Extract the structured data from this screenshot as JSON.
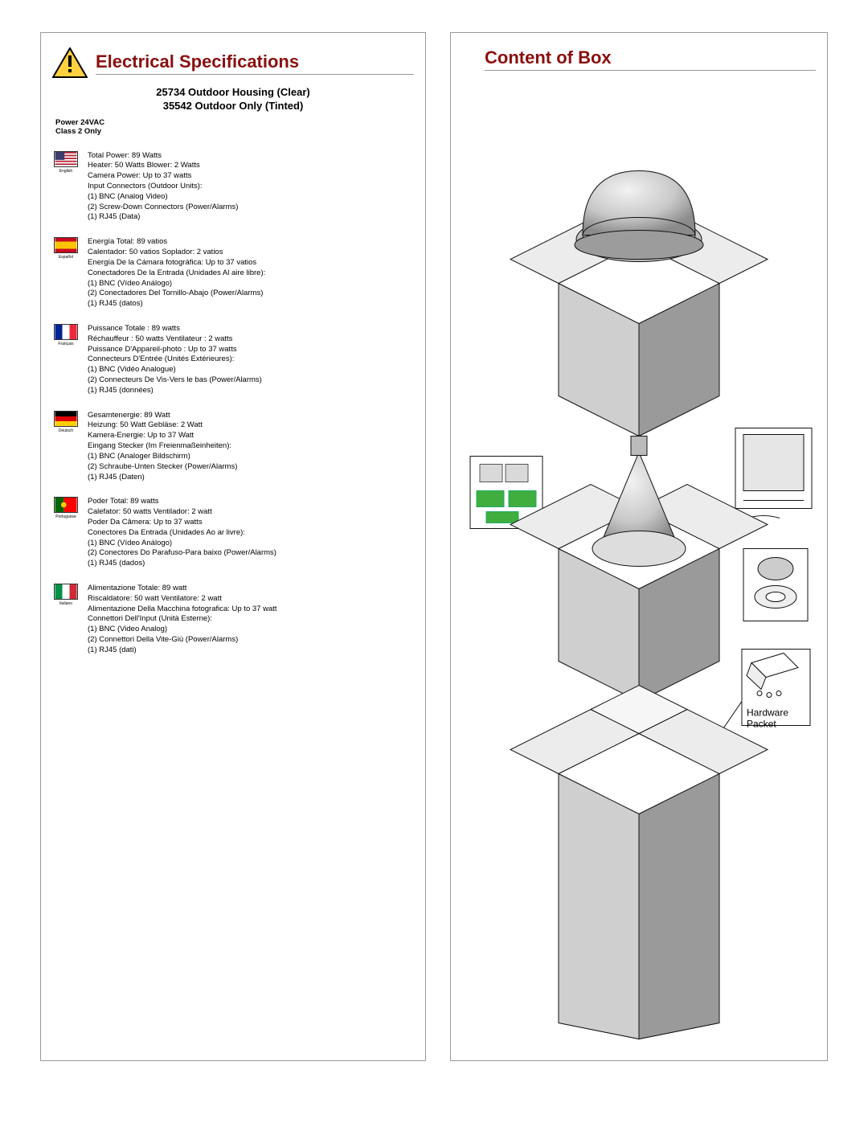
{
  "left": {
    "heading": "Electrical Specifications",
    "sub_line1": "25734 Outdoor Housing (Clear)",
    "sub_line2": "35542 Outdoor Only (Tinted)",
    "power_line1": "Power 24VAC",
    "power_line2": "Class 2 Only",
    "languages": [
      {
        "name": "English",
        "flag": "us",
        "text": "Total Power: 89 Watts\nHeater: 50 Watts    Blower: 2 Watts\nCamera Power:  Up to 37 watts\nInput Connectors (Outdoor Units):\n            (1) BNC (Analog Video)\n            (2) Screw-Down Connectors (Power/Alarms)\n            (1) RJ45 (Data)"
      },
      {
        "name": "Español",
        "flag": "es",
        "text": "Energía Total: 89 vatios\nCalentador: 50 vatios    Soplador: 2 vatios\nEnergía De la Cámara fotográfica:  Up to 37 vatios\nConectadores De la Entrada (Unidades Al aire libre):\n            (1) BNC (Vídeo Análogo)\n            (2) Conectadores Del Tornillo-Abajo (Power/Alarms)\n            (1) RJ45 (datos)"
      },
      {
        "name": "Français",
        "flag": "fr",
        "text": "Puissance Totale : 89 watts\nRéchauffeur : 50 watts    Ventilateur : 2 watts\nPuissance D'Appareil-photo : Up to 37 watts\nConnecteurs D'Entrée (Unités Extérieures):\n            (1) BNC (Vidéo Analogue)\n            (2) Connecteurs De Vis-Vers le bas (Power/Alarms)\n            (1) RJ45 (données)"
      },
      {
        "name": "Deutsch",
        "flag": "de",
        "text": "Gesamtenergie: 89 Watt\nHeizung: 50 Watt    Gebläse: 2 Watt\nKamera-Energie:  Up to 37 Watt\nEingang Stecker (Im Freienmaßeinheiten):\n            (1) BNC (Analoger Bildschirm)\n            (2) Schraube-Unten Stecker (Power/Alarms)\n            (1) RJ45 (Daten)"
      },
      {
        "name": "Portuguese",
        "flag": "pt",
        "text": "Poder Total: 89 watts\nCalefator: 50 watts    Ventilador: 2 watt\nPoder Da Câmera: Up to 37 watts\nConectores Da Entrada (Unidades Ao ar livre):\n            (1) BNC (Vídeo Análogo)\n            (2) Conectores Do Parafuso-Para baixo (Power/Alarms)\n            (1) RJ45 (dados)"
      },
      {
        "name": "Italiano",
        "flag": "it",
        "text": "Alimentazione Totale: 89 watt\nRiscaldatore: 50 watt    Ventilatore: 2 watt\nAlimentazione Della Macchina fotografica:  Up to 37 watt\nConnettori Dell'Input (Unità Esterne):\n            (1) BNC (Video Analog)\n            (2) Connettori Della Vite-Giù (Power/Alarms)\n            (1) RJ45 (dati)"
      }
    ]
  },
  "right": {
    "heading": "Content of Box",
    "hardware_packet_label": "Hardware\nPacket"
  },
  "colors": {
    "heading": "#8a0f0f",
    "border": "#999999",
    "box_fill": "#ffffff",
    "box_shadow": "#d8d8d8",
    "box_stroke": "#111111",
    "dome_light": "#e2e2e2",
    "dome_mid": "#bdbdbd",
    "dome_dark": "#8f8f8f"
  }
}
